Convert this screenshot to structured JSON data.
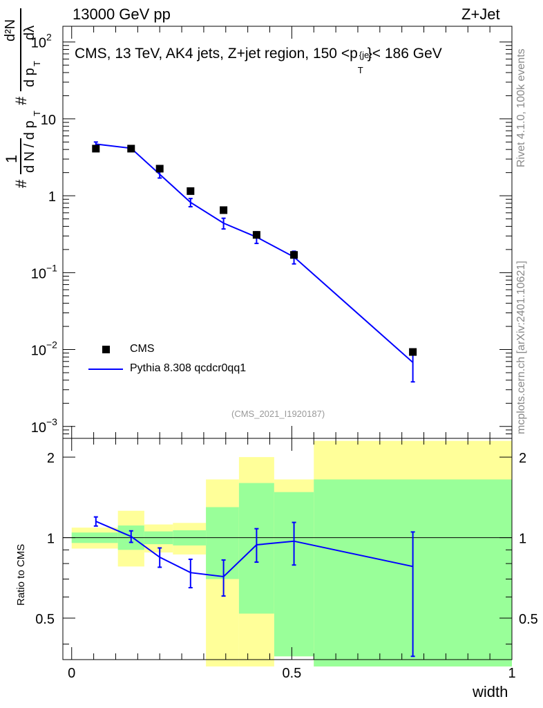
{
  "header": {
    "left": "13000 GeV pp",
    "right": "Z+Jet"
  },
  "side_labels": {
    "rivet": "Rivet 4.1.0,  100k events",
    "mcplots": "mcplots.cern.ch [arXiv:2401.10621]"
  },
  "chart_data": [
    {
      "type": "line",
      "title": "CMS, 13 TeV, AK4 jets, Z+jet region, 150 <p_T^{jet}< 186 GeV",
      "title_text": "CMS, 13 TeV, AK4 jets, Z+jet region, 150 <p",
      "title_sup": "{jet",
      "title_sub": "T",
      "title_end": "}< 186 GeV",
      "watermark": "(CMS_2021_I1920187)",
      "ylabel_parts": {
        "hash1": "#",
        "one": "1",
        "dN": "d N / d p",
        "T1": "T",
        "hash2": "#",
        "d2N": "d²N",
        "dpT": "d p",
        "T2": "T",
        "dlambda": "dλ"
      },
      "yscale": "log",
      "ylim": [
        0.0007,
        160
      ],
      "xlim": [
        -0.02,
        1.0
      ],
      "ytick_labels": [
        {
          "value": 100,
          "base": "10",
          "exp": "2"
        },
        {
          "value": 10,
          "base": "10",
          "exp": ""
        },
        {
          "value": 1,
          "base": "1",
          "exp": ""
        },
        {
          "value": 0.1,
          "base": "10",
          "exp": "−1"
        },
        {
          "value": 0.01,
          "base": "10",
          "exp": "−2"
        },
        {
          "value": 0.001,
          "base": "10",
          "exp": "−3"
        }
      ],
      "legend": {
        "position": "bottom-left",
        "entries": [
          {
            "label": "CMS",
            "marker": "square",
            "color": "#000000"
          },
          {
            "label": "Pythia 8.308 qcdcr0qq1",
            "marker": "line",
            "color": "#0000ff"
          }
        ]
      },
      "series": [
        {
          "name": "CMS",
          "x": [
            0.055,
            0.135,
            0.2,
            0.27,
            0.345,
            0.42,
            0.505,
            0.775
          ],
          "y": [
            4.1,
            4.1,
            2.25,
            1.15,
            0.65,
            0.31,
            0.17,
            0.0093
          ]
        },
        {
          "name": "Pythia 8.308 qcdcr0qq1",
          "x": [
            0.055,
            0.135,
            0.2,
            0.27,
            0.345,
            0.42,
            0.505,
            0.775
          ],
          "y": [
            4.7,
            4.15,
            1.9,
            0.82,
            0.44,
            0.29,
            0.16,
            0.0068
          ],
          "yerr_low": [
            0.3,
            0.2,
            0.2,
            0.1,
            0.07,
            0.05,
            0.03,
            0.003
          ],
          "yerr_high": [
            0.3,
            0.2,
            0.2,
            0.1,
            0.07,
            0.05,
            0.03,
            0.003
          ]
        }
      ]
    },
    {
      "type": "line",
      "title": "",
      "xlabel": "width",
      "ylabel": "Ratio to CMS",
      "yscale": "log",
      "ylim": [
        0.35,
        2.35
      ],
      "xlim": [
        -0.02,
        1.0
      ],
      "yticks": [
        0.5,
        1,
        2
      ],
      "ytick_labels": [
        "0.5",
        "1",
        "2"
      ],
      "xticks": [
        0,
        0.5,
        1
      ],
      "xtick_labels": [
        "0",
        "0.5",
        "1"
      ],
      "reference_line": 1,
      "uncertainty_bands": [
        {
          "x0": 0.0,
          "x1": 0.105,
          "yellow": [
            0.91,
            1.09
          ],
          "green": [
            0.955,
            1.045
          ]
        },
        {
          "x0": 0.105,
          "x1": 0.165,
          "yellow": [
            0.78,
            1.26
          ],
          "green": [
            0.9,
            1.11
          ]
        },
        {
          "x0": 0.165,
          "x1": 0.23,
          "yellow": [
            0.88,
            1.12
          ],
          "green": [
            0.945,
            1.055
          ]
        },
        {
          "x0": 0.23,
          "x1": 0.305,
          "yellow": [
            0.865,
            1.135
          ],
          "green": [
            0.935,
            1.065
          ]
        },
        {
          "x0": 0.305,
          "x1": 0.38,
          "yellow": [
            0.33,
            1.65
          ],
          "green": [
            0.7,
            1.3
          ]
        },
        {
          "x0": 0.38,
          "x1": 0.46,
          "yellow": [
            0.33,
            2.0
          ],
          "green": [
            0.52,
            1.6
          ]
        },
        {
          "x0": 0.46,
          "x1": 0.55,
          "yellow": [
            0.36,
            1.65
          ],
          "green": [
            0.36,
            1.48
          ]
        },
        {
          "x0": 0.55,
          "x1": 1.0,
          "yellow": [
            0.33,
            2.3
          ],
          "green": [
            0.33,
            1.65
          ]
        }
      ],
      "series": [
        {
          "name": "Pythia 8.308 qcdcr0qq1 / CMS",
          "x": [
            0.055,
            0.135,
            0.2,
            0.27,
            0.345,
            0.42,
            0.505,
            0.775
          ],
          "y": [
            1.15,
            1.01,
            0.845,
            0.74,
            0.715,
            0.94,
            0.97,
            0.78
          ],
          "yerr_low": [
            0.045,
            0.05,
            0.07,
            0.09,
            0.11,
            0.13,
            0.18,
            0.42
          ],
          "yerr_high": [
            0.045,
            0.05,
            0.07,
            0.09,
            0.11,
            0.14,
            0.17,
            0.27
          ]
        }
      ]
    }
  ]
}
